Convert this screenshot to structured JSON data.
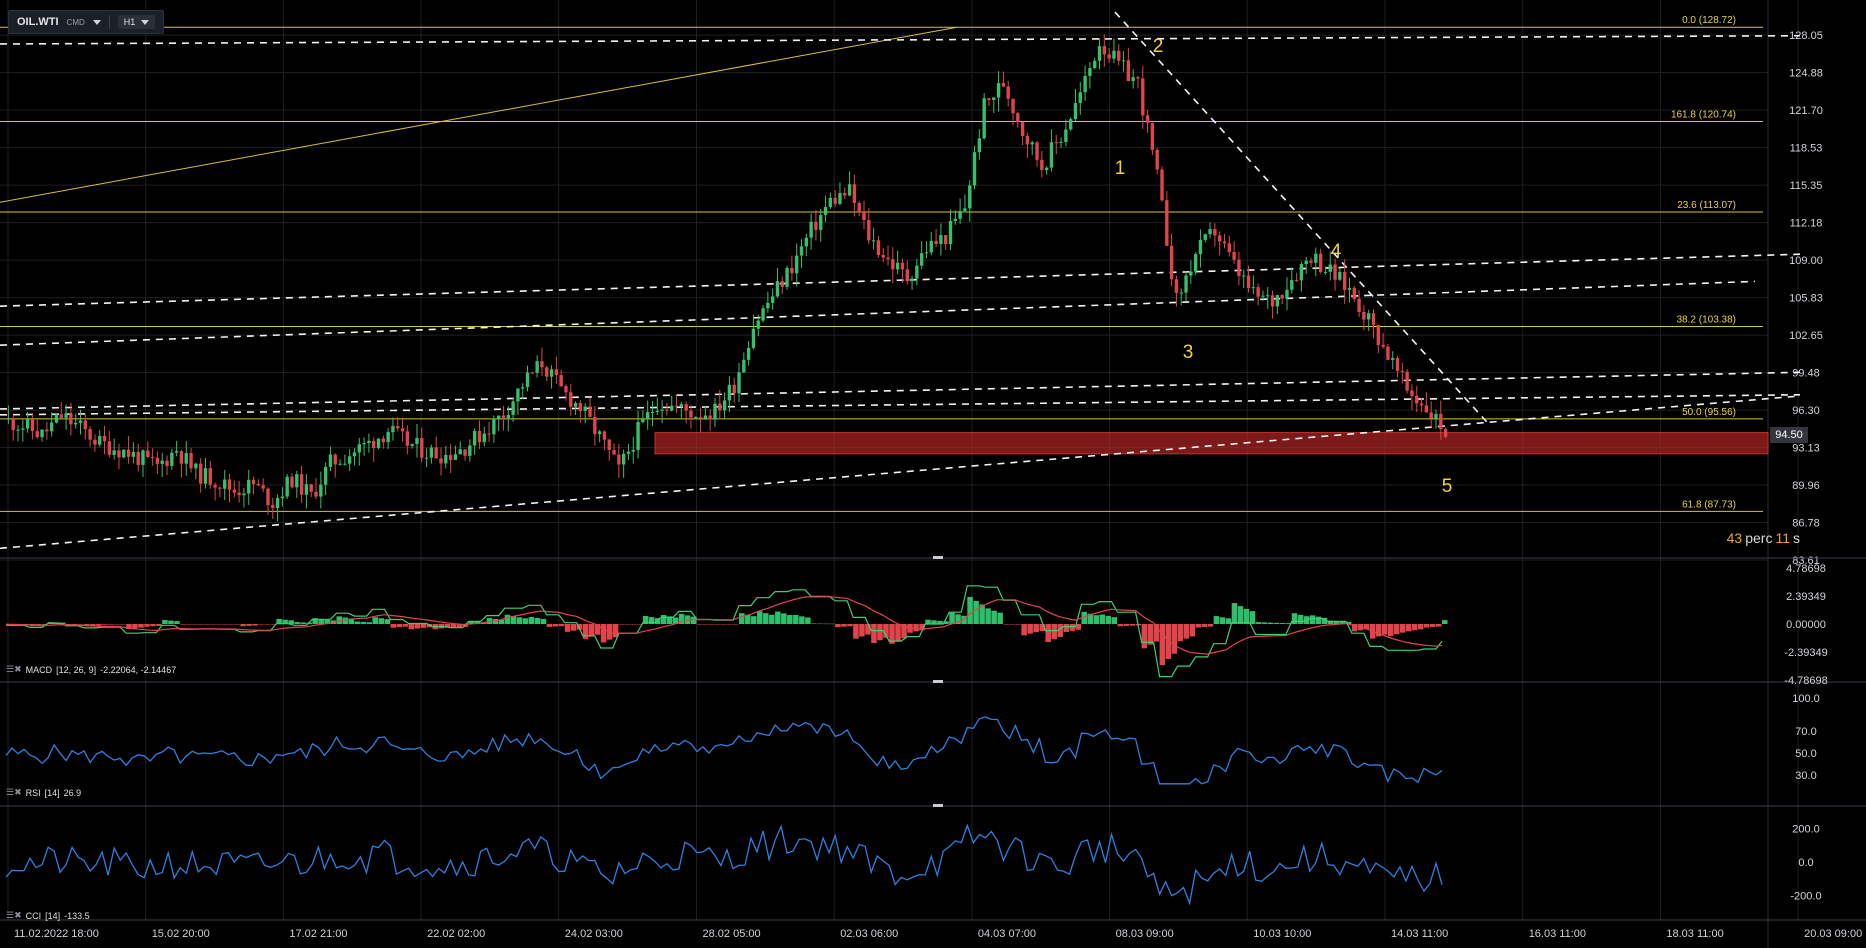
{
  "toolbar": {
    "symbol": "OIL.WTI",
    "type": "CMD",
    "timeframe": "H1"
  },
  "chart_data": {
    "type": "candlestick",
    "title": "",
    "price_axis_labels": [
      "128.05",
      "124.88",
      "121.70",
      "118.53",
      "115.35",
      "112.18",
      "109.00",
      "105.83",
      "102.65",
      "99.48",
      "96.30",
      "93.13",
      "89.96",
      "86.78",
      "83.61"
    ],
    "price_axis_range": [
      83.61,
      129.5
    ],
    "current_price": "94.50",
    "time_axis_labels": [
      "11.02.2022 18:00",
      "15.02 20:00",
      "17.02 21:00",
      "22.02 02:00",
      "24.02 03:00",
      "28.02 05:00",
      "02.03 06:00",
      "04.03 07:00",
      "08.03 09:00",
      "10.03 10:00",
      "14.03 11:00",
      "16.03 11:00",
      "18.03 11:00",
      "20.03 09:00"
    ],
    "fib_levels": [
      {
        "label": "0.0 (128.72)",
        "value": 128.72
      },
      {
        "label": "161.8 (120.74)",
        "value": 120.74
      },
      {
        "label": "23.6 (113.07)",
        "value": 113.07
      },
      {
        "label": "38.2 (103.38)",
        "value": 103.38
      },
      {
        "label": "50.0 (95.56)",
        "value": 95.56
      },
      {
        "label": "61.8 (87.73)",
        "value": 87.73
      }
    ],
    "wave_labels": [
      "1",
      "2",
      "3",
      "4",
      "5"
    ],
    "support_zone": [
      92.6,
      94.4
    ],
    "close_series_approx": [
      95.5,
      95.0,
      94.2,
      95.8,
      94.8,
      93.5,
      93.0,
      92.3,
      91.5,
      93.0,
      91.0,
      90.4,
      89.5,
      90.0,
      88.5,
      90.5,
      89.0,
      91.8,
      92.6,
      93.5,
      94.6,
      93.5,
      92.8,
      92.5,
      93.2,
      94.5,
      96.0,
      98.5,
      100.3,
      98.0,
      96.5,
      94.0,
      91.2,
      94.5,
      97.0,
      96.5,
      96.0,
      96.2,
      98.5,
      103.5,
      106.0,
      108.5,
      111.5,
      114.0,
      114.8,
      111.0,
      109.0,
      107.5,
      110.0,
      111.0,
      113.5,
      122.0,
      124.0,
      120.0,
      117.0,
      119.5,
      123.0,
      127.5,
      125.5,
      124.0,
      116.0,
      105.5,
      109.5,
      111.5,
      108.5,
      106.0,
      105.5,
      107.5,
      109.5,
      108.0,
      106.5,
      104.0,
      101.0,
      98.0,
      96.5,
      94.5
    ],
    "timer": {
      "value1": "43",
      "unit1": "perc",
      "value2": "11",
      "unit2": "s"
    },
    "macd": {
      "label": "MACD",
      "params": "[12, 26, 9]",
      "values": "-2.22064, -2.14467",
      "axis_labels": [
        "4.78698",
        "2.39349",
        "0.00000",
        "-2.39349",
        "-4.78698"
      ]
    },
    "rsi": {
      "label": "RSI",
      "params": "[14]",
      "value": "26.9",
      "axis_labels": [
        "100.0",
        "70.0",
        "50.0",
        "30.0"
      ]
    },
    "cci": {
      "label": "CCI",
      "params": "[14]",
      "value": "-133.5",
      "axis_labels": [
        "200.0",
        "0.0",
        "-200.0"
      ]
    }
  }
}
